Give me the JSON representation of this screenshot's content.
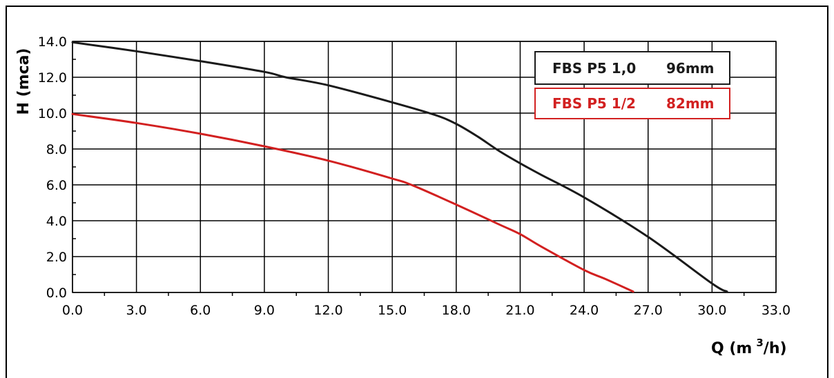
{
  "chart_data": {
    "type": "line",
    "xlabel": "Q (m",
    "xlabel_sup": "3",
    "xlabel_tail": "/h)",
    "ylabel": "H (mca)",
    "xlim": [
      0,
      33
    ],
    "ylim": [
      0,
      14
    ],
    "x_ticks": [
      "0.0",
      "3.0",
      "6.0",
      "9.0",
      "12.0",
      "15.0",
      "18.0",
      "21.0",
      "24.0",
      "27.0",
      "30.0",
      "33.0"
    ],
    "y_ticks": [
      "0.0",
      "2.0",
      "4.0",
      "6.0",
      "8.0",
      "10.0",
      "12.0",
      "14.0"
    ],
    "grid": true,
    "legend_placement": "top-right",
    "series": [
      {
        "name": "FBS P5 1,0",
        "label_extra": "96mm",
        "color": "#1a1a1a",
        "x": [
          0,
          3,
          6,
          9,
          10,
          12,
          15,
          17,
          18,
          19,
          20,
          21,
          22,
          24,
          27,
          30,
          30.7
        ],
        "y": [
          13.95,
          13.45,
          12.9,
          12.3,
          12.0,
          11.55,
          10.6,
          9.9,
          9.4,
          8.7,
          7.9,
          7.2,
          6.55,
          5.3,
          3.1,
          0.5,
          0.05
        ]
      },
      {
        "name": "FBS P5 1/2",
        "label_extra": "82mm",
        "color": "#d22020",
        "x": [
          0,
          3,
          6,
          9,
          12,
          15,
          16,
          18,
          20,
          21,
          22,
          24,
          25,
          26.3
        ],
        "y": [
          9.95,
          9.45,
          8.85,
          8.15,
          7.35,
          6.35,
          5.95,
          4.9,
          3.8,
          3.25,
          2.55,
          1.25,
          0.75,
          0.05
        ]
      }
    ]
  }
}
